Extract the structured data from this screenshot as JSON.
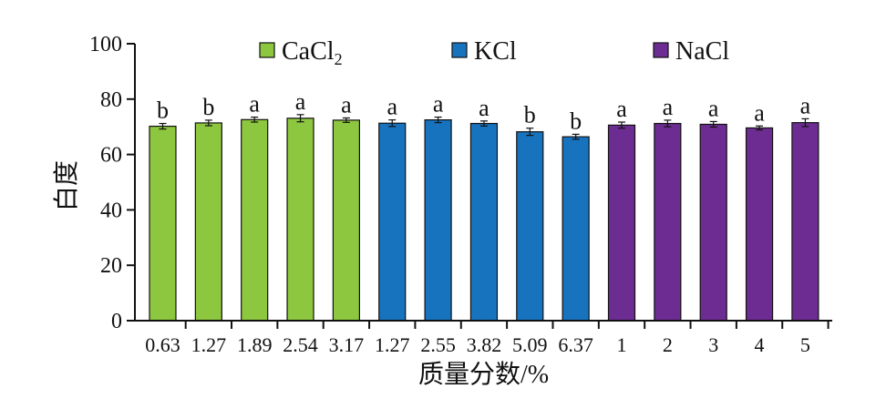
{
  "chart_data": {
    "type": "bar",
    "ylabel": "白度",
    "xlabel": "质量分数/%",
    "ylim": [
      0,
      100
    ],
    "yticks": [
      0,
      20,
      40,
      60,
      80,
      100
    ],
    "grid": false,
    "legend_position": "top",
    "groups": [
      {
        "name": "CaCl",
        "subscript": "2",
        "color": "#8dc63f",
        "categories": [
          "0.63",
          "1.27",
          "1.89",
          "2.54",
          "3.17"
        ],
        "values": [
          70.2,
          71.4,
          72.6,
          73.1,
          72.4
        ],
        "errors": [
          1.0,
          1.0,
          0.9,
          1.3,
          0.8
        ],
        "significance": [
          "b",
          "b",
          "a",
          "a",
          "a"
        ]
      },
      {
        "name": "KCl",
        "color": "#1873bf",
        "categories": [
          "1.27",
          "2.55",
          "3.82",
          "5.09",
          "6.37"
        ],
        "values": [
          71.3,
          72.5,
          71.2,
          68.2,
          66.4
        ],
        "errors": [
          1.2,
          1.0,
          0.9,
          1.3,
          0.9
        ],
        "significance": [
          "a",
          "a",
          "a",
          "b",
          "b"
        ]
      },
      {
        "name": "NaCl",
        "color": "#6d2c91",
        "categories": [
          "1",
          "2",
          "3",
          "4",
          "5"
        ],
        "values": [
          70.6,
          71.2,
          70.9,
          69.6,
          71.5
        ],
        "errors": [
          1.1,
          1.2,
          1.0,
          0.7,
          1.4
        ],
        "significance": [
          "a",
          "a",
          "a",
          "a",
          "a"
        ]
      }
    ]
  }
}
